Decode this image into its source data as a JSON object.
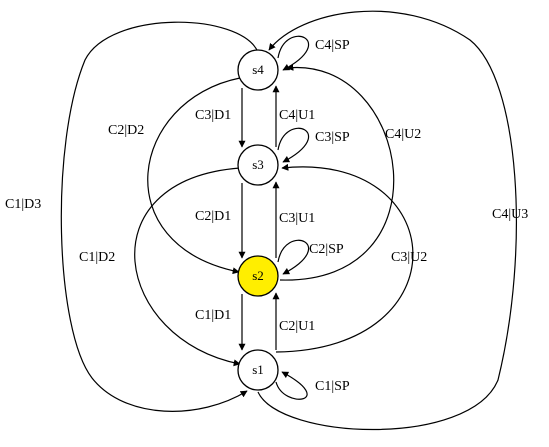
{
  "diagram": {
    "type": "state-machine",
    "highlight_color": "#ffee00",
    "states": [
      {
        "id": "s4",
        "label": "s4",
        "highlighted": false
      },
      {
        "id": "s3",
        "label": "s3",
        "highlighted": false
      },
      {
        "id": "s2",
        "label": "s2",
        "highlighted": true
      },
      {
        "id": "s1",
        "label": "s1",
        "highlighted": false
      }
    ],
    "transitions": [
      {
        "from": "s4",
        "to": "s4",
        "label": "C4|SP"
      },
      {
        "from": "s3",
        "to": "s3",
        "label": "C3|SP"
      },
      {
        "from": "s2",
        "to": "s2",
        "label": "C2|SP"
      },
      {
        "from": "s1",
        "to": "s1",
        "label": "C1|SP"
      },
      {
        "from": "s4",
        "to": "s3",
        "label": "C3|D1"
      },
      {
        "from": "s3",
        "to": "s4",
        "label": "C4|U1"
      },
      {
        "from": "s3",
        "to": "s2",
        "label": "C2|D1"
      },
      {
        "from": "s2",
        "to": "s3",
        "label": "C3|U1"
      },
      {
        "from": "s2",
        "to": "s1",
        "label": "C1|D1"
      },
      {
        "from": "s1",
        "to": "s2",
        "label": "C2|U1"
      },
      {
        "from": "s4",
        "to": "s2",
        "label": "C2|D2"
      },
      {
        "from": "s2",
        "to": "s4",
        "label": "C4|U2"
      },
      {
        "from": "s3",
        "to": "s1",
        "label": "C1|D2"
      },
      {
        "from": "s1",
        "to": "s3",
        "label": "C3|U2"
      },
      {
        "from": "s4",
        "to": "s1",
        "label": "C1|D3"
      },
      {
        "from": "s1",
        "to": "s4",
        "label": "C4|U3"
      }
    ]
  }
}
